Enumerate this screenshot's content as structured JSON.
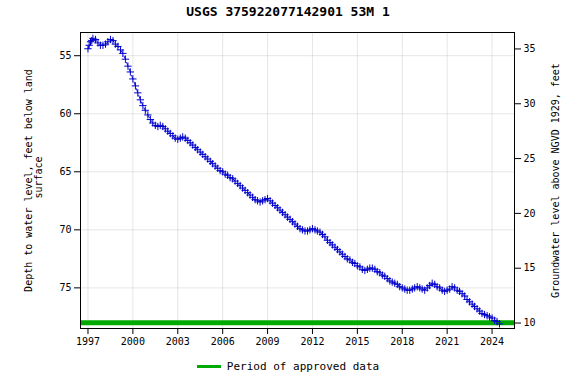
{
  "chart_data": {
    "type": "line",
    "title": "USGS 375922077142901 53M  1",
    "ylabel": "Depth to water level, feet below land\n surface",
    "y2label": "Groundwater level above NGVD 1929, feet",
    "xlim": [
      1996.5,
      2025.5
    ],
    "xticks": [
      1997,
      2000,
      2003,
      2006,
      2009,
      2012,
      2015,
      2018,
      2021,
      2024
    ],
    "ylim": [
      78.5,
      53.0
    ],
    "yticks": [
      55,
      60,
      65,
      70,
      75
    ],
    "y2lim": [
      9.5,
      36.5
    ],
    "y2ticks": [
      35,
      30,
      25,
      20,
      15,
      10
    ],
    "grid": true,
    "legend": "bottom",
    "x": [
      1997.0,
      1997.08,
      1997.17,
      1997.25,
      1997.33,
      1997.5,
      1997.67,
      1997.83,
      1998.0,
      1998.17,
      1998.33,
      1998.5,
      1998.67,
      1998.83,
      1999.0,
      1999.17,
      1999.33,
      1999.5,
      1999.67,
      1999.83,
      2000.0,
      2000.17,
      2000.33,
      2000.5,
      2000.67,
      2000.83,
      2001.0,
      2001.17,
      2001.33,
      2001.5,
      2001.67,
      2001.83,
      2002.0,
      2002.17,
      2002.33,
      2002.5,
      2002.67,
      2002.83,
      2003.0,
      2003.17,
      2003.33,
      2003.5,
      2003.67,
      2003.83,
      2004.0,
      2004.17,
      2004.33,
      2004.5,
      2004.67,
      2004.83,
      2005.0,
      2005.17,
      2005.33,
      2005.5,
      2005.67,
      2005.83,
      2006.0,
      2006.17,
      2006.33,
      2006.5,
      2006.67,
      2006.83,
      2007.0,
      2007.17,
      2007.33,
      2007.5,
      2007.67,
      2007.83,
      2008.0,
      2008.17,
      2008.33,
      2008.5,
      2008.67,
      2008.83,
      2009.0,
      2009.17,
      2009.33,
      2009.5,
      2009.67,
      2009.83,
      2010.0,
      2010.17,
      2010.33,
      2010.5,
      2010.67,
      2010.83,
      2011.0,
      2011.17,
      2011.33,
      2011.5,
      2011.67,
      2011.83,
      2012.0,
      2012.17,
      2012.33,
      2012.5,
      2012.67,
      2012.83,
      2013.0,
      2013.17,
      2013.33,
      2013.5,
      2013.67,
      2013.83,
      2014.0,
      2014.17,
      2014.33,
      2014.5,
      2014.67,
      2014.83,
      2015.0,
      2015.17,
      2015.33,
      2015.5,
      2015.67,
      2015.83,
      2016.0,
      2016.17,
      2016.33,
      2016.5,
      2016.67,
      2016.83,
      2017.0,
      2017.17,
      2017.33,
      2017.5,
      2017.67,
      2017.83,
      2018.0,
      2018.17,
      2018.33,
      2018.5,
      2018.67,
      2018.83,
      2019.0,
      2019.17,
      2019.33,
      2019.5,
      2019.67,
      2019.83,
      2020.0,
      2020.17,
      2020.33,
      2020.5,
      2020.67,
      2020.83,
      2021.0,
      2021.17,
      2021.33,
      2021.5,
      2021.67,
      2021.83,
      2022.0,
      2022.17,
      2022.33,
      2022.5,
      2022.67,
      2022.83,
      2023.0,
      2023.17,
      2023.33,
      2023.5,
      2023.67,
      2023.83,
      2024.0,
      2024.17,
      2024.33,
      2024.5
    ],
    "series": [
      {
        "color": "#0000cc",
        "line_style": "dashed",
        "marker": "plus",
        "values": [
          54.4,
          54.1,
          53.8,
          53.7,
          53.5,
          53.6,
          53.9,
          54.1,
          54.1,
          54.0,
          53.8,
          53.6,
          53.7,
          54.0,
          54.2,
          54.5,
          54.8,
          55.3,
          55.9,
          56.4,
          57.0,
          57.6,
          58.2,
          58.8,
          59.3,
          59.7,
          60.1,
          60.5,
          60.8,
          61.0,
          61.1,
          61.0,
          61.1,
          61.3,
          61.5,
          61.7,
          61.9,
          62.1,
          62.2,
          62.1,
          62.0,
          62.1,
          62.3,
          62.5,
          62.7,
          62.9,
          63.1,
          63.3,
          63.5,
          63.7,
          63.9,
          64.1,
          64.3,
          64.5,
          64.7,
          64.9,
          65.0,
          65.2,
          65.3,
          65.5,
          65.6,
          65.8,
          66.0,
          66.2,
          66.4,
          66.6,
          66.8,
          67.0,
          67.2,
          67.4,
          67.5,
          67.6,
          67.5,
          67.4,
          67.3,
          67.5,
          67.7,
          67.9,
          68.1,
          68.3,
          68.5,
          68.7,
          68.9,
          69.1,
          69.3,
          69.5,
          69.7,
          69.9,
          70.0,
          70.1,
          70.1,
          70.0,
          69.9,
          70.0,
          70.1,
          70.2,
          70.4,
          70.6,
          70.9,
          71.1,
          71.3,
          71.5,
          71.7,
          71.9,
          72.1,
          72.3,
          72.5,
          72.6,
          72.8,
          72.9,
          73.1,
          73.2,
          73.4,
          73.5,
          73.4,
          73.3,
          73.3,
          73.4,
          73.6,
          73.7,
          73.9,
          74.0,
          74.2,
          74.4,
          74.5,
          74.6,
          74.7,
          74.9,
          75.0,
          75.1,
          75.2,
          75.2,
          75.1,
          75.0,
          74.9,
          75.0,
          75.1,
          75.2,
          75.0,
          74.8,
          74.6,
          74.7,
          74.9,
          75.0,
          75.2,
          75.3,
          75.2,
          75.1,
          74.9,
          75.0,
          75.2,
          75.3,
          75.5,
          75.7,
          76.0,
          76.2,
          76.4,
          76.6,
          76.8,
          77.0,
          77.2,
          77.3,
          77.4,
          77.5,
          77.6,
          77.8,
          77.9,
          78.1
        ]
      }
    ],
    "hline": {
      "name": "Period of approved data",
      "value": 78.0,
      "color": "#00aa00"
    }
  }
}
